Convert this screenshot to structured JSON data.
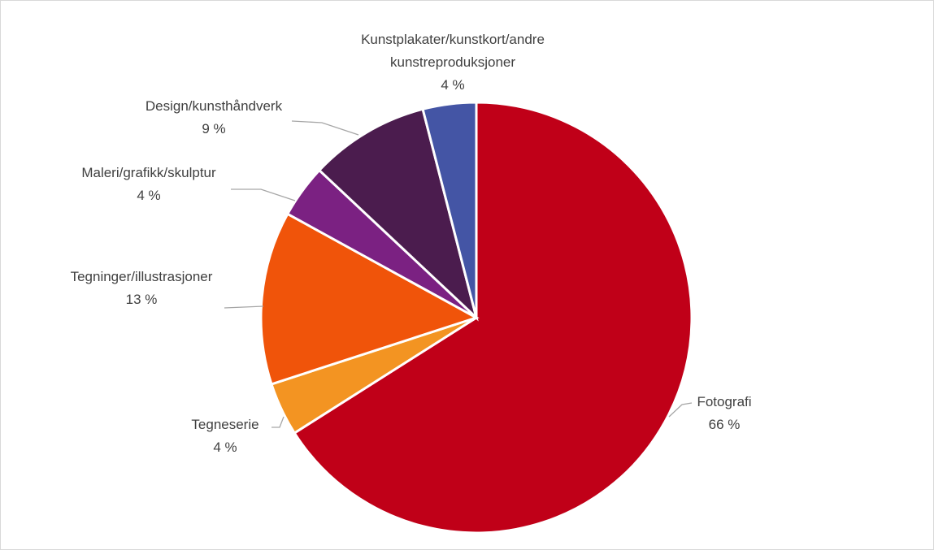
{
  "chart_data": {
    "type": "pie",
    "categories": [
      "Fotografi",
      "Tegneserie",
      "Tegninger/illustrasjoner",
      "Maleri/grafikk/skulptur",
      "Design/kunsthåndverk",
      "Kunstplakater/kunstkort/andre kunstreproduksjoner"
    ],
    "values": [
      66,
      4,
      13,
      4,
      9,
      4
    ],
    "value_labels": [
      "66 %",
      "4 %",
      "13 %",
      "4 %",
      "9 %",
      "4 %"
    ],
    "colors": [
      "#c00018",
      "#f39422",
      "#f0540a",
      "#7b2182",
      "#4b1c4e",
      "#4455a5"
    ]
  }
}
